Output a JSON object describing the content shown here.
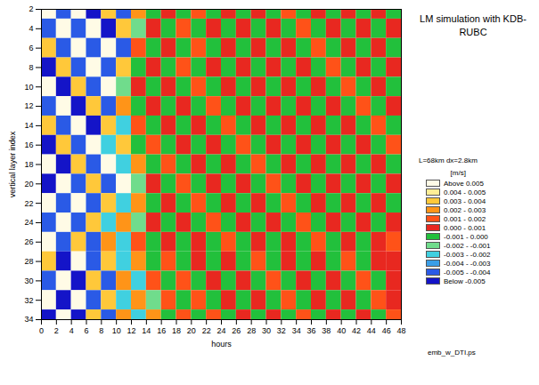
{
  "chart_data": {
    "type": "heatmap",
    "title": "LM simulation with KDB-RUBC",
    "x_label": "hours",
    "y_label": "vertical layer index",
    "annotations": [
      "L=68km  dx=2.8km",
      "emb_w_DTI.ps"
    ],
    "x_edges": [
      0,
      2,
      4,
      6,
      8,
      10,
      12,
      14,
      16,
      18,
      20,
      22,
      24,
      26,
      28,
      30,
      32,
      34,
      36,
      38,
      40,
      42,
      44,
      46,
      48
    ],
    "y_edges": [
      1,
      3,
      5,
      7,
      9,
      11,
      13,
      15,
      17,
      19,
      21,
      23,
      25,
      27,
      29,
      31,
      33,
      35
    ],
    "xlim": [
      0,
      48
    ],
    "xticks": [
      0,
      2,
      4,
      6,
      8,
      10,
      12,
      14,
      16,
      18,
      20,
      22,
      24,
      26,
      28,
      30,
      32,
      34,
      36,
      38,
      40,
      42,
      44,
      46,
      48
    ],
    "ylim": [
      34,
      2
    ],
    "yticks": [
      2,
      4,
      6,
      8,
      10,
      12,
      14,
      16,
      18,
      20,
      22,
      24,
      26,
      28,
      30,
      32,
      34
    ],
    "cells": [
      [
        0.006,
        -0.0045,
        0.006,
        -0.006,
        0.0035,
        -0.0045,
        0.0025,
        -0.0005,
        0.0005,
        -0.0005,
        0.0015,
        -0.0005,
        0.0005,
        -0.0005,
        0.0005,
        -0.0005,
        0.0015,
        -0.0005,
        0.0005,
        -0.0005,
        0.0005,
        -0.0005,
        0.0005,
        -0.0005
      ],
      [
        -0.0045,
        0.006,
        -0.0045,
        0.006,
        -0.006,
        0.0035,
        -0.0015,
        0.0005,
        -0.0005,
        0.0015,
        -0.0005,
        0.0005,
        -0.0005,
        0.0005,
        -0.0005,
        0.0005,
        -0.0005,
        0.0015,
        -0.0005,
        0.0005,
        -0.0005,
        0.0005,
        -0.0005,
        0.0005
      ],
      [
        0.0035,
        -0.0045,
        0.006,
        -0.0045,
        0.006,
        -0.0045,
        0.0015,
        -0.0005,
        0.0005,
        -0.0005,
        0.0015,
        -0.0005,
        0.0005,
        -0.0005,
        0.0005,
        -0.0005,
        0.0005,
        -0.0005,
        0.0015,
        -0.0005,
        0.0005,
        -0.0005,
        0.0005,
        -0.0005
      ],
      [
        -0.006,
        0.0035,
        -0.0045,
        0.006,
        -0.0045,
        0.0035,
        -0.0005,
        0.0005,
        -0.0005,
        0.0015,
        -0.0005,
        0.0005,
        -0.0005,
        0.0005,
        -0.0005,
        0.0005,
        -0.0005,
        0.0005,
        -0.0005,
        0.0015,
        -0.0005,
        0.0005,
        -0.0005,
        0.0005
      ],
      [
        0.006,
        -0.006,
        0.0035,
        -0.0045,
        0.006,
        -0.0015,
        0.0005,
        -0.0005,
        0.0005,
        -0.0005,
        0.0015,
        -0.0005,
        0.0005,
        -0.0005,
        0.0005,
        -0.0005,
        0.0005,
        -0.0005,
        0.0005,
        -0.0005,
        0.0015,
        -0.0005,
        0.0005,
        -0.0005
      ],
      [
        -0.0045,
        0.006,
        -0.006,
        0.0035,
        -0.0045,
        0.0025,
        -0.0005,
        0.0005,
        -0.0005,
        0.0005,
        -0.0005,
        0.0015,
        -0.0005,
        0.0005,
        -0.0005,
        0.0005,
        -0.0005,
        0.0005,
        -0.0005,
        0.0005,
        -0.0005,
        0.0015,
        -0.0005,
        0.0005
      ],
      [
        0.0035,
        -0.0045,
        0.006,
        -0.006,
        0.0035,
        -0.0025,
        0.0015,
        -0.0005,
        0.0005,
        -0.0005,
        0.0005,
        -0.0005,
        0.0015,
        -0.0005,
        0.0005,
        -0.0005,
        0.0005,
        -0.0005,
        0.0005,
        -0.0005,
        0.0005,
        -0.0005,
        0.0015,
        -0.0005
      ],
      [
        -0.006,
        0.0035,
        -0.0045,
        0.006,
        -0.0025,
        0.0035,
        -0.0005,
        0.0015,
        -0.0005,
        0.0005,
        -0.0005,
        0.0005,
        -0.0005,
        0.0015,
        -0.0005,
        0.0005,
        -0.0005,
        0.0005,
        -0.0005,
        0.0005,
        -0.0005,
        0.0005,
        -0.0005,
        0.0015
      ],
      [
        0.006,
        -0.006,
        0.0035,
        -0.0045,
        0.006,
        -0.0025,
        0.0025,
        -0.0005,
        0.0015,
        -0.0005,
        0.0005,
        -0.0005,
        0.0005,
        -0.0005,
        0.0015,
        -0.0005,
        0.0005,
        -0.0005,
        0.0005,
        -0.0005,
        0.0005,
        -0.0005,
        0.0005,
        -0.0005
      ],
      [
        -0.006,
        0.006,
        -0.0045,
        0.0035,
        -0.0045,
        0.006,
        -0.0015,
        0.0005,
        -0.0005,
        0.0015,
        -0.0005,
        0.0005,
        -0.0005,
        0.0005,
        -0.0005,
        0.0015,
        -0.0005,
        0.0005,
        -0.0005,
        0.0005,
        -0.0005,
        0.0005,
        -0.0005,
        0.0005
      ],
      [
        0.006,
        -0.0045,
        0.006,
        -0.0045,
        0.0035,
        -0.0025,
        0.0025,
        -0.0005,
        0.0005,
        -0.0005,
        0.0015,
        -0.0005,
        0.0005,
        -0.0005,
        0.0005,
        -0.0005,
        0.0015,
        -0.0005,
        0.0005,
        -0.0005,
        0.0005,
        -0.0005,
        0.0005,
        -0.0005
      ],
      [
        -0.0045,
        0.006,
        -0.0045,
        0.0035,
        -0.0025,
        0.0025,
        -0.0015,
        0.0005,
        -0.0005,
        0.0005,
        -0.0005,
        0.0015,
        -0.0005,
        0.0005,
        -0.0005,
        0.0005,
        -0.0005,
        0.0015,
        -0.0005,
        0.0005,
        -0.0005,
        0.0005,
        -0.0005,
        0.0005
      ],
      [
        0.006,
        -0.0045,
        0.0035,
        -0.0045,
        0.0025,
        -0.0025,
        0.0015,
        -0.0005,
        0.0005,
        -0.0005,
        0.0005,
        -0.0005,
        0.0015,
        -0.0005,
        0.0005,
        -0.0005,
        0.0005,
        -0.0005,
        0.0015,
        -0.0005,
        0.0005,
        -0.0005,
        0.0005,
        0.0015
      ],
      [
        0.0035,
        -0.006,
        0.006,
        -0.0045,
        0.0035,
        -0.0025,
        0.0025,
        -0.0005,
        0.0015,
        -0.0005,
        0.0005,
        -0.0005,
        0.0005,
        -0.0005,
        0.0015,
        -0.0005,
        0.0005,
        -0.0005,
        0.0005,
        -0.0005,
        0.0015,
        -0.0005,
        0.0005,
        0.0005
      ],
      [
        -0.0045,
        0.006,
        -0.006,
        0.0035,
        -0.0045,
        0.0025,
        -0.0025,
        0.0015,
        -0.0005,
        0.0015,
        -0.0005,
        0.0005,
        -0.0005,
        0.0005,
        -0.0005,
        0.0015,
        -0.0005,
        0.0005,
        -0.0005,
        0.0005,
        -0.0005,
        0.0015,
        -0.0005,
        0.0005
      ],
      [
        0.006,
        -0.006,
        0.006,
        -0.0045,
        0.0035,
        -0.0025,
        0.0025,
        -0.0015,
        0.0015,
        -0.0005,
        0.0015,
        -0.0005,
        0.0005,
        -0.0005,
        0.0005,
        -0.0005,
        0.0015,
        -0.0005,
        0.0005,
        -0.0005,
        0.0005,
        -0.0005,
        0.0015,
        0.0005
      ],
      [
        -0.006,
        0.006,
        -0.006,
        0.0035,
        -0.0045,
        0.0025,
        -0.0025,
        0.0025,
        -0.0005,
        0.0015,
        -0.0005,
        0.0015,
        -0.0005,
        0.0005,
        -0.0005,
        0.0005,
        -0.0005,
        0.0015,
        -0.0005,
        0.0005,
        -0.0005,
        0.0005,
        -0.0005,
        0.0015
      ]
    ],
    "colorbar": {
      "label": "[m/s]",
      "thresholds": [
        -0.005,
        -0.004,
        -0.003,
        -0.002,
        -0.001,
        0,
        0.001,
        0.002,
        0.003,
        0.004,
        0.005
      ],
      "colors": [
        "#1414c8",
        "#2a5ae6",
        "#3a9ee8",
        "#40d0e0",
        "#70dc8c",
        "#22c03c",
        "#e82820",
        "#ff5218",
        "#ff9418",
        "#ffc83a",
        "#ffee96",
        "#fffbe6"
      ],
      "labels": [
        "Below  -0.005",
        "-0.005 -  -0.004",
        "-0.004 -  -0.003",
        "-0.003 -  -0.002",
        "-0.002 -  -0.001",
        "-0.001 -  0.000",
        "0.000 -  0.001",
        "0.001 -  0.002",
        "0.002 -  0.003",
        "0.003 -  0.004",
        "0.004 -  0.005",
        "Above  0.005"
      ]
    }
  }
}
